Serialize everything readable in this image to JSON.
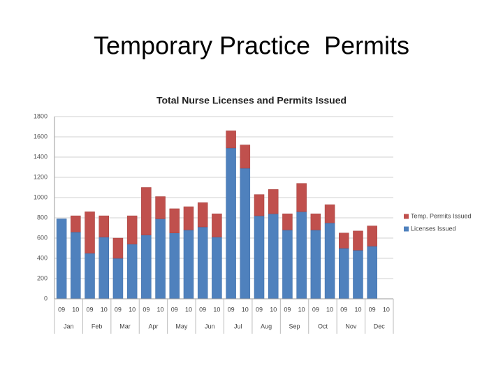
{
  "slide": {
    "title": "Temporary Practice  Permits"
  },
  "chart_data": {
    "type": "stacked_bar",
    "title": "Total Nurse Licenses and Permits Issued",
    "categories": [
      "09",
      "10",
      "09",
      "10",
      "09",
      "10",
      "09",
      "10",
      "09",
      "10",
      "09",
      "10",
      "09",
      "10",
      "09",
      "10",
      "09",
      "10",
      "09",
      "10",
      "09",
      "10",
      "09",
      "10"
    ],
    "groups": [
      "Jan",
      "Feb",
      "Mar",
      "Apr",
      "May",
      "Jun",
      "Jul",
      "Aug",
      "Sep",
      "Oct",
      "Nov",
      "Dec"
    ],
    "series": [
      {
        "name": "Licenses Issued",
        "color": "#4f81bd",
        "values": [
          790,
          660,
          450,
          610,
          400,
          540,
          630,
          790,
          650,
          680,
          710,
          610,
          1490,
          1290,
          820,
          840,
          680,
          860,
          680,
          750,
          500,
          480,
          520,
          null
        ]
      },
      {
        "name": "Temp. Permits Issued",
        "color": "#c0504d",
        "values": [
          0,
          160,
          410,
          210,
          200,
          280,
          470,
          220,
          240,
          230,
          240,
          230,
          170,
          230,
          210,
          240,
          160,
          280,
          160,
          180,
          150,
          190,
          200,
          null
        ]
      }
    ],
    "ylim": [
      0,
      1800
    ],
    "yticks": [
      0,
      200,
      400,
      600,
      800,
      1000,
      1200,
      1400,
      1600,
      1800
    ],
    "grid": true,
    "legend": "right"
  }
}
